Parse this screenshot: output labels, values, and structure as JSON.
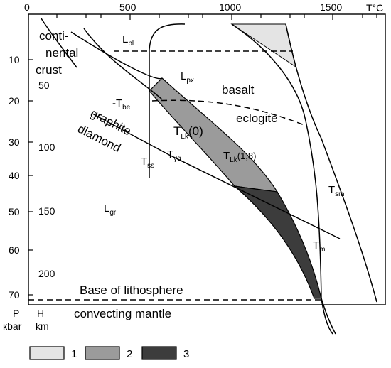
{
  "axes": {
    "t_unit": "T°C",
    "t_ticks": [
      "0",
      "500",
      "1000",
      "1500"
    ],
    "p_ticks": [
      "10",
      "20",
      "30",
      "40",
      "50",
      "60",
      "70"
    ],
    "h_ticks": [
      "50",
      "100",
      "150",
      "200"
    ],
    "p_label": "P",
    "p_unit": "кbar",
    "h_label": "H",
    "h_unit": "km"
  },
  "labels": {
    "crust_1": "conti-",
    "crust_2": "nental",
    "crust_3": "crust",
    "basalt": "basalt",
    "eclogite": "eclogite",
    "graphite": "graphite",
    "diamond": "diamond",
    "base_lithosphere": "Base of lithosphere",
    "convecting_mantle": "convecting mantle"
  },
  "symbols": {
    "L_pl": {
      "main": "L",
      "sub": "pl"
    },
    "L_px": {
      "main": "L",
      "sub": "px"
    },
    "T_be": {
      "main": "-T",
      "sub": "be"
    },
    "T_Lk0": {
      "main": "T",
      "sub": "Lk",
      "tail": "(0)"
    },
    "T_Lk18": {
      "main": "T",
      "sub": "Lk",
      "tail": "(1,8)"
    },
    "T_ss": {
      "main": "T",
      "sub": "ss"
    },
    "T_ya": {
      "main": "T",
      "sub": "γα"
    },
    "T_sm": {
      "main": "T",
      "sub": "sm"
    },
    "L_gr": {
      "main": "L",
      "sub": "gr"
    },
    "T_m": {
      "main": "T",
      "sub": "m"
    }
  },
  "legend": [
    {
      "label": "1",
      "color": "#e4e4e4"
    },
    {
      "label": "2",
      "color": "#9b9b9b"
    },
    {
      "label": "3",
      "color": "#3c3c3c"
    }
  ]
}
